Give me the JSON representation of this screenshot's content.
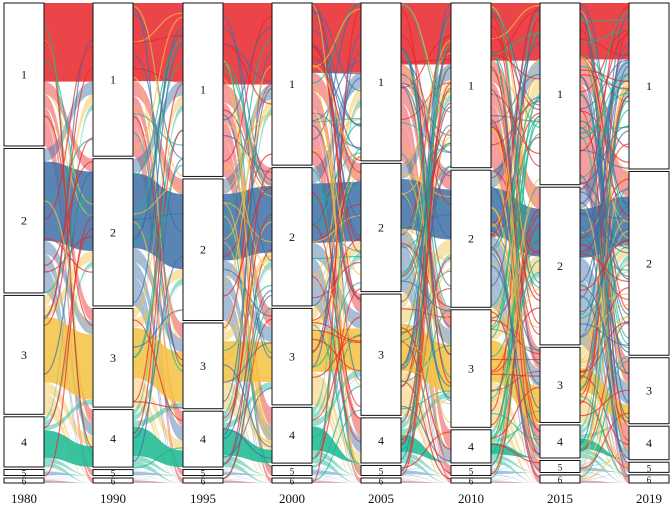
{
  "years": [
    "1980",
    "1990",
    "1995",
    "2000",
    "2005",
    "2010",
    "2015",
    "2019"
  ],
  "cluster_labels": [
    "1",
    "2",
    "3",
    "4",
    "5",
    "6"
  ],
  "cluster_shares": [
    [
      0.285,
      0.288,
      0.237,
      0.1,
      0.012,
      0.01
    ],
    [
      0.309,
      0.297,
      0.199,
      0.116,
      0.012,
      0.01
    ],
    [
      0.348,
      0.284,
      0.172,
      0.112,
      0.012,
      0.01
    ],
    [
      0.326,
      0.278,
      0.194,
      0.112,
      0.02,
      0.01
    ],
    [
      0.315,
      0.256,
      0.242,
      0.09,
      0.02,
      0.01
    ],
    [
      0.328,
      0.273,
      0.234,
      0.066,
      0.02,
      0.01
    ],
    [
      0.363,
      0.315,
      0.15,
      0.066,
      0.024,
      0.016
    ],
    [
      0.327,
      0.362,
      0.13,
      0.066,
      0.02,
      0.016
    ]
  ],
  "flow_colors": {
    "1": "#e8252a",
    "2": "#3d6fa6",
    "3": "#f5c242",
    "4": "#17b890",
    "5": "#8fbcd9",
    "6": "#c9a0b8"
  },
  "line_color": "#e8252a",
  "node_fill": "#ffffff",
  "node_stroke": "#111111"
}
